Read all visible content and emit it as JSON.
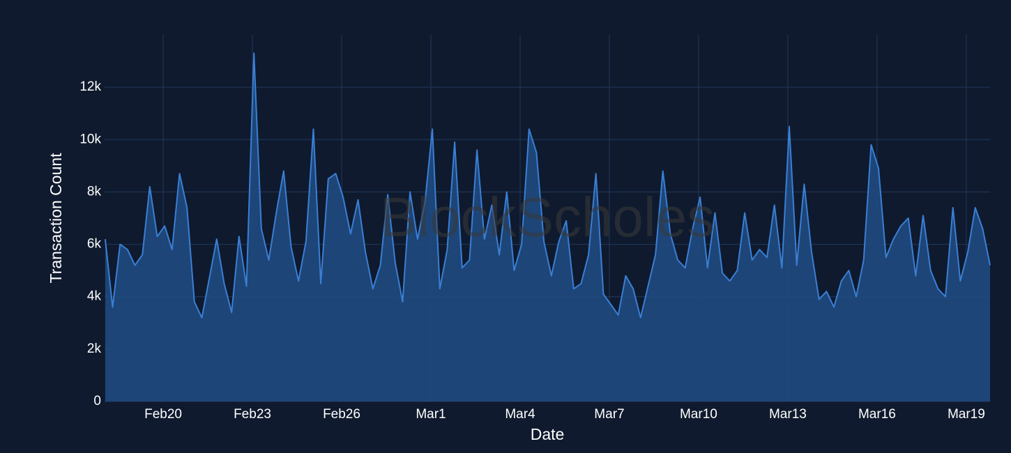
{
  "chart_data": {
    "type": "area",
    "watermark": "BlockScholes",
    "x_label": "Date",
    "y_label": "Transaction Count",
    "color": "#3a7fd5",
    "fill": "#1f4a80",
    "grid": true,
    "xlim": [
      -1.97,
      27.8
    ],
    "xticks": [
      {
        "value": 0,
        "label": "Feb20"
      },
      {
        "value": 3,
        "label": "Feb23"
      },
      {
        "value": 6,
        "label": "Feb26"
      },
      {
        "value": 9,
        "label": "Mar1"
      },
      {
        "value": 12,
        "label": "Mar4"
      },
      {
        "value": 15,
        "label": "Mar7"
      },
      {
        "value": 18,
        "label": "Mar10"
      },
      {
        "value": 21,
        "label": "Mar13"
      },
      {
        "value": 24,
        "label": "Mar16"
      },
      {
        "value": 27,
        "label": "Mar19"
      }
    ],
    "ylim": [
      0,
      14000
    ],
    "yticks": [
      0,
      {
        "value": 2000,
        "label": "2k"
      },
      {
        "value": 4000,
        "label": "4k"
      },
      {
        "value": 6000,
        "label": "6k"
      },
      {
        "value": 8000,
        "label": "8k"
      },
      {
        "value": 10000,
        "label": "10k"
      },
      {
        "value": 12000,
        "label": "12k"
      }
    ],
    "x": [
      -1.95,
      -1.7,
      -1.45,
      -1.2,
      -0.95,
      -0.7,
      -0.45,
      -0.2,
      0.05,
      0.3,
      0.55,
      0.8,
      1.05,
      1.3,
      1.55,
      1.8,
      2.05,
      2.3,
      2.55,
      2.8,
      3.05,
      3.3,
      3.55,
      3.8,
      4.05,
      4.3,
      4.55,
      4.8,
      5.05,
      5.3,
      5.55,
      5.8,
      6.05,
      6.3,
      6.55,
      6.8,
      7.05,
      7.3,
      7.55,
      7.8,
      8.05,
      8.3,
      8.55,
      8.8,
      9.05,
      9.3,
      9.55,
      9.8,
      10.05,
      10.3,
      10.55,
      10.8,
      11.05,
      11.3,
      11.55,
      11.8,
      12.05,
      12.3,
      12.55,
      12.8,
      13.05,
      13.3,
      13.55,
      13.8,
      14.05,
      14.3,
      14.55,
      14.8,
      15.05,
      15.3,
      15.55,
      15.8,
      16.05,
      16.3,
      16.55,
      16.8,
      17.05,
      17.3,
      17.55,
      17.8,
      18.05,
      18.3,
      18.55,
      18.8,
      19.05,
      19.3,
      19.55,
      19.8,
      20.05,
      20.3,
      20.55,
      20.8,
      21.05,
      21.3,
      21.55,
      21.8,
      22.05,
      22.3,
      22.55,
      22.8,
      23.05,
      23.3,
      23.55,
      23.8,
      24.05,
      24.3,
      24.55,
      24.8,
      25.05,
      25.3,
      25.55,
      25.8,
      26.05,
      26.3,
      26.55,
      26.8,
      27.05,
      27.3,
      27.55,
      27.8
    ],
    "values": [
      6200,
      3600,
      6000,
      5800,
      5200,
      5600,
      8200,
      6300,
      6700,
      5800,
      8700,
      7400,
      3800,
      3200,
      4700,
      6200,
      4500,
      3400,
      6300,
      4400,
      13300,
      6600,
      5400,
      7200,
      8800,
      5900,
      4600,
      6100,
      10400,
      4500,
      8500,
      8700,
      7800,
      6400,
      7700,
      5700,
      4300,
      5200,
      7900,
      5300,
      3800,
      8000,
      6200,
      7600,
      10400,
      4300,
      5800,
      9900,
      5100,
      5400,
      9600,
      6200,
      7500,
      5600,
      8000,
      5000,
      6000,
      10400,
      9500,
      6100,
      4800,
      6100,
      6900,
      4300,
      4500,
      5600,
      8700,
      4100,
      3700,
      3300,
      4800,
      4300,
      3200,
      4400,
      5600,
      8800,
      6400,
      5400,
      5100,
      6600,
      7800,
      5100,
      7200,
      4900,
      4600,
      5000,
      7200,
      5400,
      5800,
      5500,
      7500,
      5100,
      10500,
      5200,
      8300,
      5700,
      3900,
      4200,
      3600,
      4600,
      5000,
      4000,
      5400,
      9800,
      8900,
      5500,
      6200,
      6700,
      7000,
      4800,
      7100,
      5000,
      4300,
      4000,
      7400,
      4600,
      5700,
      7400,
      6600,
      5200
    ]
  }
}
